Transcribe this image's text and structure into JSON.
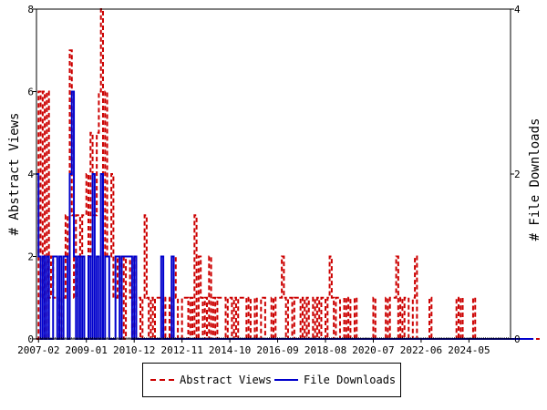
{
  "chart_data": {
    "type": "line",
    "title": "",
    "ylabel_left": "# Abstract Views",
    "ylabel_right": "# File Downloads",
    "xlabel": "",
    "x_tick_labels": [
      "2007-02",
      "2009-01",
      "2010-12",
      "2012-11",
      "2014-10",
      "2016-09",
      "2018-08",
      "2020-07",
      "2022-06",
      "2024-05"
    ],
    "x_tick_months": [
      "2007-02",
      "2009-01",
      "2010-12",
      "2012-11",
      "2014-10",
      "2016-09",
      "2018-08",
      "2020-07",
      "2022-06",
      "2024-05"
    ],
    "x_range": [
      "2007-01",
      "2026-01"
    ],
    "ylim_left": [
      0,
      8
    ],
    "ylim_right": [
      0,
      4
    ],
    "yticks_left": [
      0,
      2,
      4,
      6,
      8
    ],
    "yticks_right": [
      0,
      2,
      4
    ],
    "grid": false,
    "legend_position": "bottom",
    "series": [
      {
        "name": "Abstract Views",
        "axis": "left",
        "color": "#cc0000",
        "dash": "dashed",
        "values": [
          0,
          6,
          1,
          6,
          0,
          6,
          1,
          2,
          1,
          1,
          1,
          0,
          1,
          1,
          3,
          2,
          7,
          3,
          1,
          3,
          3,
          2,
          3,
          3,
          4,
          2,
          5,
          3,
          3,
          5,
          6,
          8,
          2,
          6,
          2,
          2,
          4,
          1,
          1,
          2,
          1,
          2,
          0,
          2,
          2,
          1,
          0,
          2,
          1,
          1,
          0,
          1,
          3,
          1,
          0,
          1,
          0,
          1,
          1,
          1,
          1,
          0,
          1,
          1,
          0,
          1,
          2,
          1,
          0,
          0,
          1,
          1,
          1,
          0,
          1,
          0,
          3,
          0,
          2,
          1,
          0,
          1,
          0,
          2,
          0,
          1,
          0,
          1,
          1,
          1,
          1,
          0,
          1,
          1,
          0,
          1,
          0,
          1,
          1,
          1,
          1,
          0,
          1,
          0,
          0,
          1,
          0,
          0,
          1,
          1,
          0,
          0,
          0,
          1,
          0,
          1,
          1,
          1,
          2,
          1,
          0,
          1,
          1,
          0,
          1,
          1,
          1,
          0,
          1,
          0,
          1,
          0,
          0,
          1,
          0,
          1,
          0,
          1,
          1,
          0,
          1,
          2,
          1,
          0,
          1,
          1,
          0,
          0,
          1,
          0,
          1,
          0,
          0,
          1,
          0,
          0,
          0,
          0,
          0,
          0,
          0,
          0,
          1,
          0,
          0,
          0,
          0,
          0,
          1,
          0,
          1,
          1,
          1,
          2,
          0,
          1,
          0,
          1,
          1,
          0,
          0,
          1,
          2,
          0,
          0,
          0,
          0,
          0,
          0,
          1,
          0,
          0,
          0,
          0,
          0,
          0,
          0,
          0,
          0,
          0,
          0,
          0,
          1,
          0,
          1,
          0,
          0,
          0,
          0,
          0,
          1,
          0,
          0,
          0,
          0,
          0,
          0,
          0,
          0,
          0,
          0,
          0,
          0,
          0,
          0,
          0,
          0,
          0,
          0,
          0,
          0,
          0,
          0,
          0,
          0,
          0,
          0,
          0,
          0,
          0,
          0,
          0
        ]
      },
      {
        "name": "File Downloads",
        "axis": "right",
        "color": "#0000cc",
        "dash": "solid",
        "values": [
          2,
          1,
          0,
          1,
          0,
          1,
          0,
          0,
          1,
          1,
          0,
          1,
          0,
          1,
          1,
          0,
          2,
          3,
          1,
          0,
          1,
          0,
          1,
          0,
          0,
          1,
          0,
          2,
          0,
          1,
          0,
          2,
          0,
          1,
          1,
          0,
          0,
          0,
          1,
          1,
          0,
          1,
          1,
          1,
          1,
          1,
          0,
          1,
          0,
          0,
          0,
          0,
          0,
          0,
          0,
          0,
          0,
          0,
          0,
          0,
          1,
          0,
          0,
          0,
          0,
          1,
          0,
          0,
          0,
          0,
          0,
          0,
          0,
          0,
          0,
          0,
          0,
          0,
          0,
          0,
          0,
          0,
          0,
          0,
          0,
          0,
          0,
          0,
          0,
          0,
          0,
          0,
          0,
          0,
          0,
          0,
          0,
          0,
          0,
          0,
          0,
          0,
          0,
          0,
          0,
          0,
          0,
          0,
          0,
          0,
          0,
          0,
          0,
          0,
          0,
          0,
          0,
          0,
          0,
          0,
          0,
          0,
          0,
          0,
          0,
          0,
          0,
          0,
          0,
          0,
          0,
          0,
          0,
          0,
          0,
          0,
          0,
          0,
          0,
          0,
          0,
          0,
          0,
          0,
          0,
          0,
          0,
          0,
          0,
          0,
          0,
          0,
          0,
          0,
          0,
          0,
          0,
          0,
          0,
          0,
          0,
          0,
          0,
          0,
          0,
          0,
          0,
          0,
          0,
          0,
          0,
          0,
          0,
          0,
          0,
          0,
          0,
          0,
          0,
          0,
          0,
          0,
          0,
          0,
          0,
          0,
          0,
          0,
          0,
          0,
          0,
          0,
          0,
          0,
          0,
          0,
          0,
          0,
          0,
          0,
          0,
          0,
          0,
          0,
          0,
          0,
          0,
          0,
          0,
          0,
          0,
          0,
          0,
          0,
          0,
          0,
          0,
          0,
          0,
          0,
          0,
          0,
          0,
          0,
          0,
          0,
          0,
          0,
          0,
          0,
          0,
          0,
          0,
          0,
          0,
          0,
          0,
          0,
          0
        ]
      }
    ]
  },
  "legend": {
    "items": [
      {
        "label": "Abstract Views",
        "color": "#cc0000",
        "dash": "dashed"
      },
      {
        "label": "File Downloads",
        "color": "#0000cc",
        "dash": "solid"
      }
    ]
  }
}
